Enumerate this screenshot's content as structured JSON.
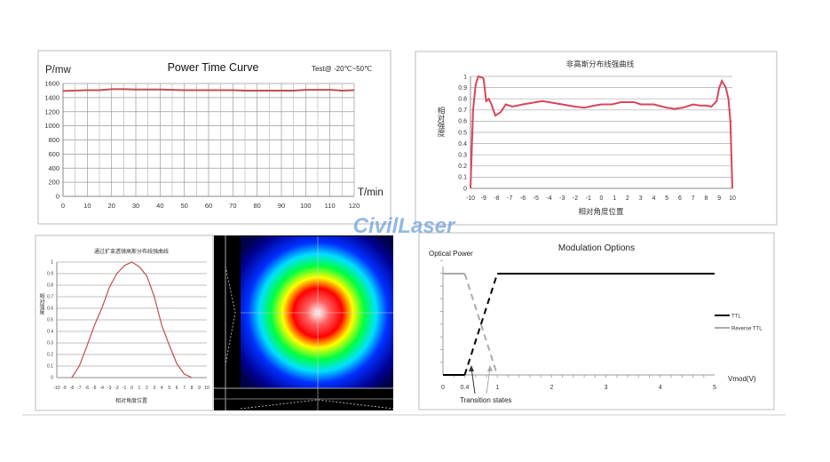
{
  "watermark": "CivilLaser",
  "chart_data": [
    {
      "type": "line",
      "title": "Power Time Curve",
      "subtitle": "Test@ -20℃~50℃",
      "xlabel": "T/min",
      "ylabel": "P/mw",
      "xlim": [
        0,
        120
      ],
      "ylim": [
        0,
        1600
      ],
      "xticks": [
        0,
        10,
        20,
        30,
        40,
        50,
        60,
        70,
        80,
        90,
        100,
        110,
        120
      ],
      "yticks": [
        0,
        200,
        400,
        600,
        800,
        1000,
        1200,
        1400,
        1600
      ],
      "grid": true,
      "color": "#c0504d",
      "x": [
        0,
        5,
        10,
        15,
        20,
        25,
        30,
        35,
        40,
        45,
        50,
        55,
        60,
        65,
        70,
        75,
        80,
        85,
        90,
        95,
        100,
        105,
        110,
        115,
        120
      ],
      "y": [
        1495,
        1500,
        1505,
        1505,
        1520,
        1520,
        1515,
        1515,
        1515,
        1510,
        1505,
        1505,
        1505,
        1505,
        1505,
        1500,
        1500,
        1500,
        1500,
        1500,
        1510,
        1510,
        1510,
        1500,
        1505
      ]
    },
    {
      "type": "line",
      "title": "非高斯分布线强曲线",
      "xlabel": "相对角度位置",
      "ylabel": "相对强度",
      "xlim": [
        -10,
        10
      ],
      "ylim": [
        0,
        1
      ],
      "xticks": [
        -10,
        -9,
        -8,
        -7,
        -6,
        -5,
        -4,
        -3,
        -2,
        -1,
        0,
        1,
        2,
        3,
        4,
        5,
        6,
        7,
        8,
        9,
        10
      ],
      "yticks": [
        0,
        0.1,
        0.2,
        0.3,
        0.4,
        0.5,
        0.6,
        0.7,
        0.8,
        0.9,
        1
      ],
      "grid": true,
      "color": "#d9455a",
      "x": [
        -10,
        -9.8,
        -9.6,
        -9.4,
        -9.1,
        -9,
        -8.8,
        -8.6,
        -8.4,
        -8.1,
        -7.7,
        -7.3,
        -6.8,
        -6,
        -5,
        -4.5,
        -4,
        -3,
        -2,
        -1.3,
        -0.5,
        0,
        0.8,
        1.5,
        2.5,
        3,
        4,
        5,
        5.6,
        6.2,
        7,
        7.5,
        8,
        8.4,
        8.8,
        9,
        9.2,
        9.5,
        9.7,
        9.85,
        10
      ],
      "y": [
        0,
        0.7,
        0.93,
        1,
        0.99,
        0.98,
        0.78,
        0.8,
        0.75,
        0.65,
        0.68,
        0.75,
        0.73,
        0.75,
        0.77,
        0.78,
        0.77,
        0.75,
        0.73,
        0.72,
        0.74,
        0.75,
        0.75,
        0.77,
        0.77,
        0.75,
        0.75,
        0.72,
        0.71,
        0.72,
        0.75,
        0.74,
        0.74,
        0.73,
        0.78,
        0.9,
        0.96,
        0.9,
        0.8,
        0.6,
        0
      ]
    },
    {
      "type": "line",
      "title": "通过扩束透镜高斯分布线强曲线",
      "xlabel": "相对角度位置",
      "ylabel": "相对强度",
      "xlim": [
        -10,
        10
      ],
      "ylim": [
        0,
        1
      ],
      "xticks": [
        -10,
        -9,
        -8,
        -7,
        -6,
        -5,
        -4,
        -3,
        -2,
        -1,
        0,
        1,
        2,
        3,
        4,
        5,
        6,
        7,
        8,
        9,
        10
      ],
      "yticks": [
        0,
        0.1,
        0.2,
        0.3,
        0.4,
        0.5,
        0.6,
        0.7,
        0.8,
        0.9,
        1
      ],
      "grid": true,
      "color": "#c0504d",
      "x": [
        -8,
        -7,
        -6,
        -5,
        -4,
        -3,
        -2,
        -1,
        0,
        1,
        2,
        3,
        4,
        5,
        6,
        7,
        8
      ],
      "y": [
        0,
        0.1,
        0.27,
        0.45,
        0.6,
        0.78,
        0.9,
        0.97,
        1,
        0.96,
        0.88,
        0.7,
        0.45,
        0.28,
        0.12,
        0.03,
        0
      ]
    },
    {
      "type": "heatmap",
      "description_colors": [
        "#000066",
        "#0000ff",
        "#00ffff",
        "#00ff00",
        "#ffff00",
        "#ff0000",
        "#ffffff"
      ]
    },
    {
      "type": "line",
      "title": "Modulation Options",
      "ylabel": "Optical Power",
      "xlabel": "Vmod(V)",
      "xlim": [
        0,
        5
      ],
      "ylim": [
        0,
        1
      ],
      "xticks": [
        0,
        0.4,
        1,
        2,
        3,
        4,
        5
      ],
      "annotation": "Transition states",
      "legend_position": "right",
      "series": [
        {
          "name": "TTL",
          "color": "#000000",
          "x": [
            0,
            0.4,
            1,
            5
          ],
          "y": [
            0,
            0,
            1,
            1
          ]
        },
        {
          "name": "Reverse TTL",
          "color": "#aaaaaa",
          "x": [
            0,
            0.4,
            1
          ],
          "y": [
            1,
            1,
            0
          ]
        }
      ]
    }
  ]
}
